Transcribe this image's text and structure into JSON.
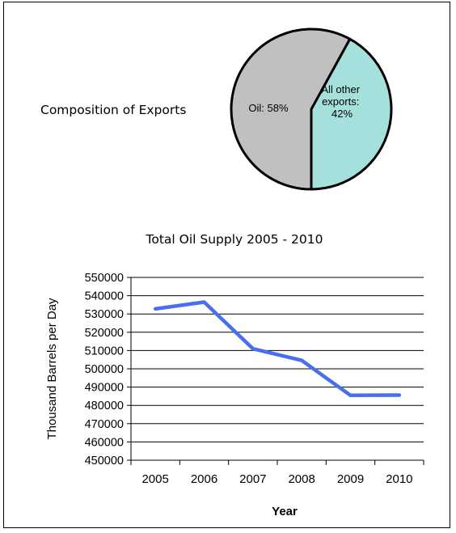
{
  "chart_data": [
    {
      "type": "pie",
      "title": "Composition of Exports",
      "slices": [
        {
          "label": "Oil",
          "value": 58,
          "display": "Oil: 58%",
          "color": "#c0c0c0"
        },
        {
          "label": "All other exports",
          "value": 42,
          "display_lines": [
            "All other",
            "exports:",
            "42%"
          ],
          "color": "#a6e0dc"
        }
      ]
    },
    {
      "type": "line",
      "title": "Total Oil Supply 2005 - 2010",
      "xlabel": "Year",
      "ylabel": "Thousand Barrels per Day",
      "x": [
        "2005",
        "2006",
        "2007",
        "2008",
        "2009",
        "2010"
      ],
      "series": [
        {
          "values": [
            532800,
            536500,
            511000,
            504600,
            485500,
            485600
          ],
          "color": "#4a6ef0"
        }
      ],
      "ylim": [
        450000,
        550000
      ],
      "yticks": [
        "450000",
        "460000",
        "470000",
        "480000",
        "490000",
        "500000",
        "510000",
        "520000",
        "530000",
        "540000",
        "550000"
      ],
      "grid": true
    }
  ]
}
